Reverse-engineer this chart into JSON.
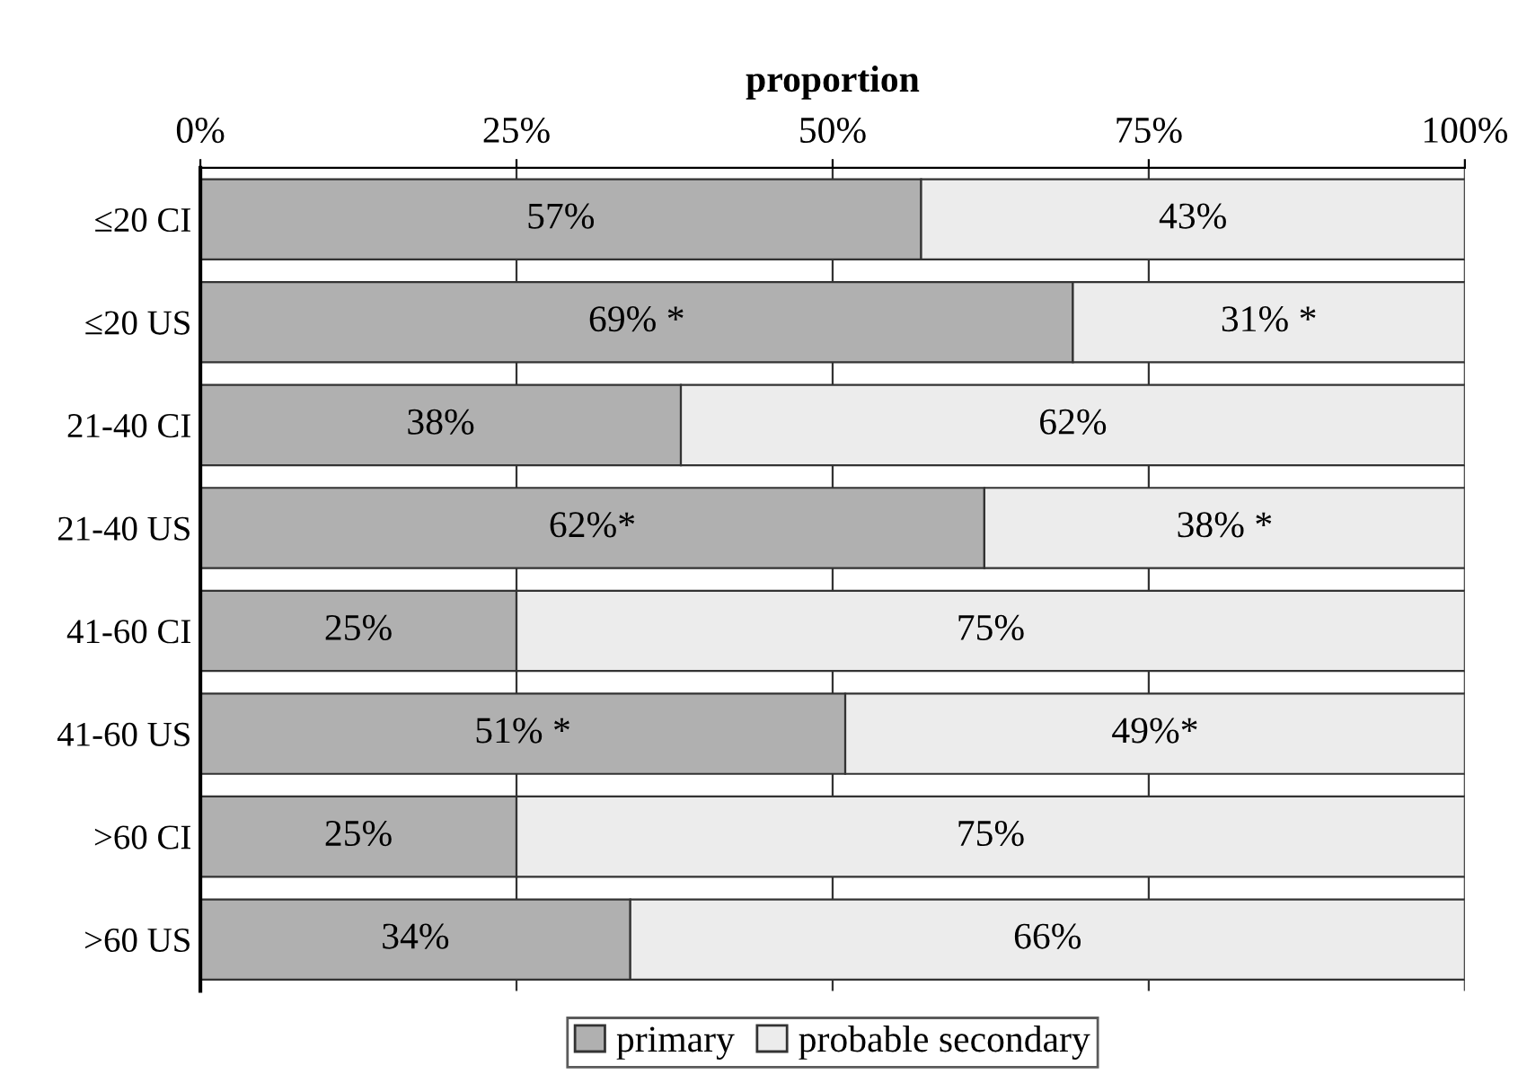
{
  "chart_data": {
    "type": "bar",
    "orientation": "horizontal",
    "stacked": true,
    "xlabel": "proportion",
    "categories": [
      "≤20 CI",
      "≤20 US",
      "21-40 CI",
      "21-40 US",
      "41-60 CI",
      "41-60 US",
      ">60 CI",
      ">60 US"
    ],
    "series": [
      {
        "name": "primary",
        "color": "#b0b0b0",
        "values": [
          57,
          69,
          38,
          62,
          25,
          51,
          25,
          34
        ],
        "value_labels": [
          "57%",
          "69% *",
          "38%",
          "62%*",
          "25%",
          "51% *",
          "25%",
          "34%"
        ]
      },
      {
        "name": "probable secondary",
        "color": "#ececec",
        "values": [
          43,
          31,
          62,
          38,
          75,
          49,
          75,
          66
        ],
        "value_labels": [
          "43%",
          "31% *",
          "62%",
          "38% *",
          "75%",
          "49%*",
          "75%",
          "66%"
        ]
      }
    ],
    "xlim": [
      0,
      100
    ],
    "xticks": [
      {
        "value": 0,
        "label": "0%"
      },
      {
        "value": 25,
        "label": "25%"
      },
      {
        "value": 50,
        "label": "50%"
      },
      {
        "value": 75,
        "label": "75%"
      },
      {
        "value": 100,
        "label": "100%"
      }
    ],
    "grid": "x",
    "legend": "bottom"
  }
}
